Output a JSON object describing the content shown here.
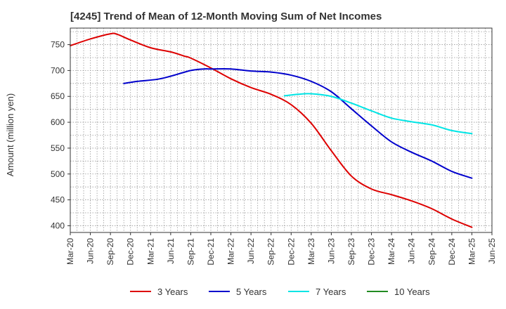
{
  "chart_data": {
    "type": "line",
    "title": "[4245]  Trend of Mean of 12-Month Moving Sum of Net Incomes",
    "xlabel": "",
    "ylabel": "Amount (million yen)",
    "ylim": [
      387,
      782
    ],
    "yticks": [
      400,
      450,
      500,
      550,
      600,
      650,
      700,
      750
    ],
    "xticks": [
      "Mar-20",
      "Jun-20",
      "Sep-20",
      "Dec-20",
      "Mar-21",
      "Jun-21",
      "Sep-21",
      "Dec-21",
      "Mar-22",
      "Jun-22",
      "Sep-22",
      "Dec-22",
      "Mar-23",
      "Jun-23",
      "Sep-23",
      "Dec-23",
      "Mar-24",
      "Jun-24",
      "Sep-24",
      "Dec-24",
      "Mar-25",
      "Jun-25"
    ],
    "grid": true,
    "legend_position": "bottom",
    "series": [
      {
        "name": "3 Years",
        "color": "#dd0000",
        "points": [
          [
            "Mar-20",
            748
          ],
          [
            "Jun-20",
            761
          ],
          [
            "Sep-20",
            771
          ],
          [
            "Oct-20",
            770
          ],
          [
            "Dec-20",
            759
          ],
          [
            "Mar-21",
            744
          ],
          [
            "Jun-21",
            736
          ],
          [
            "Aug-21",
            728
          ],
          [
            "Sep-21",
            724
          ],
          [
            "Dec-21",
            705
          ],
          [
            "Mar-22",
            684
          ],
          [
            "Jun-22",
            667
          ],
          [
            "Sep-22",
            654
          ],
          [
            "Dec-22",
            634
          ],
          [
            "Mar-23",
            598
          ],
          [
            "Jun-23",
            545
          ],
          [
            "Sep-23",
            496
          ],
          [
            "Dec-23",
            471
          ],
          [
            "Mar-24",
            460
          ],
          [
            "Jun-24",
            448
          ],
          [
            "Sep-24",
            433
          ],
          [
            "Dec-24",
            413
          ],
          [
            "Mar-25",
            397
          ]
        ]
      },
      {
        "name": "5 Years",
        "color": "#0000cc",
        "points": [
          [
            "Nov-20",
            675
          ],
          [
            "Jan-21",
            679
          ],
          [
            "Apr-21",
            683
          ],
          [
            "Jun-21",
            689
          ],
          [
            "Sep-21",
            700
          ],
          [
            "Nov-21",
            703
          ],
          [
            "Dec-21",
            703
          ],
          [
            "Mar-22",
            703
          ],
          [
            "Jun-22",
            699
          ],
          [
            "Sep-22",
            697
          ],
          [
            "Dec-22",
            691
          ],
          [
            "Mar-23",
            679
          ],
          [
            "Jun-23",
            659
          ],
          [
            "Sep-23",
            626
          ],
          [
            "Dec-23",
            593
          ],
          [
            "Mar-24",
            562
          ],
          [
            "Jun-24",
            542
          ],
          [
            "Sep-24",
            525
          ],
          [
            "Dec-24",
            505
          ],
          [
            "Mar-25",
            492
          ]
        ]
      },
      {
        "name": "7 Years",
        "color": "#00e5e5",
        "points": [
          [
            "Nov-22",
            651
          ],
          [
            "Jan-23",
            654
          ],
          [
            "Mar-23",
            655
          ],
          [
            "Jun-23",
            650
          ],
          [
            "Sep-23",
            637
          ],
          [
            "Dec-23",
            622
          ],
          [
            "Mar-24",
            608
          ],
          [
            "Jun-24",
            601
          ],
          [
            "Sep-24",
            595
          ],
          [
            "Dec-24",
            584
          ],
          [
            "Mar-25",
            578
          ]
        ]
      },
      {
        "name": "10 Years",
        "color": "#228b22",
        "points": []
      }
    ]
  }
}
